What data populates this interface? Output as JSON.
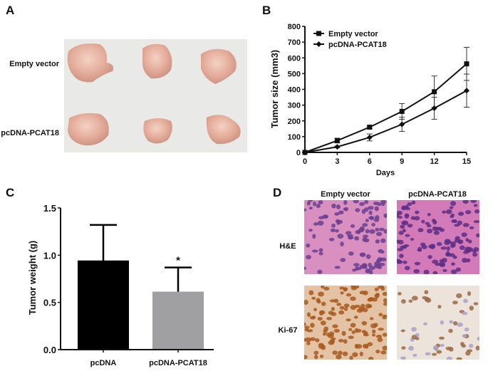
{
  "panels": {
    "A": {
      "letter": "A",
      "row_labels": [
        "Empty vector",
        "pcDNA-PCAT18"
      ]
    },
    "D": {
      "letter": "D",
      "column_labels": [
        "Empty vector",
        "pcDNA-PCAT18"
      ],
      "row_labels": [
        "H&E",
        "Ki-67"
      ]
    }
  },
  "chart_data": [
    {
      "panel": "B",
      "type": "line",
      "xlabel": "Days",
      "ylabel": "Tumor size (mm3)",
      "x": [
        0,
        3,
        6,
        9,
        12,
        15
      ],
      "xticks": [
        "0",
        "3",
        "6",
        "9",
        "12",
        "15"
      ],
      "yticks": [
        "0",
        "100",
        "200",
        "300",
        "400",
        "500",
        "600",
        "700",
        "800"
      ],
      "xlim": [
        0,
        15
      ],
      "ylim": [
        0,
        800
      ],
      "grid": false,
      "legend": "top-left",
      "series": [
        {
          "name": "Empty vector",
          "marker": "square",
          "values": [
            0,
            75,
            160,
            260,
            385,
            562
          ],
          "errors": [
            0,
            15,
            8,
            50,
            100,
            105
          ]
        },
        {
          "name": "pcDNA-PCAT18",
          "marker": "diamond",
          "values": [
            0,
            35,
            95,
            178,
            280,
            392
          ],
          "errors": [
            0,
            5,
            22,
            45,
            70,
            105
          ]
        }
      ]
    },
    {
      "panel": "C",
      "type": "bar",
      "ylabel": "Tumor weight (g)",
      "categories": [
        "pcDNA",
        "pcDNA-PCAT18"
      ],
      "values": [
        0.94,
        0.61
      ],
      "errors": [
        0.38,
        0.26
      ],
      "colors": [
        "#000000",
        "#a0a0a2"
      ],
      "annotations": [
        "",
        "*"
      ],
      "yticks": [
        "0.0",
        "0.5",
        "1.0",
        "1.5"
      ],
      "ylim": [
        0,
        1.5
      ],
      "grid": false
    }
  ]
}
